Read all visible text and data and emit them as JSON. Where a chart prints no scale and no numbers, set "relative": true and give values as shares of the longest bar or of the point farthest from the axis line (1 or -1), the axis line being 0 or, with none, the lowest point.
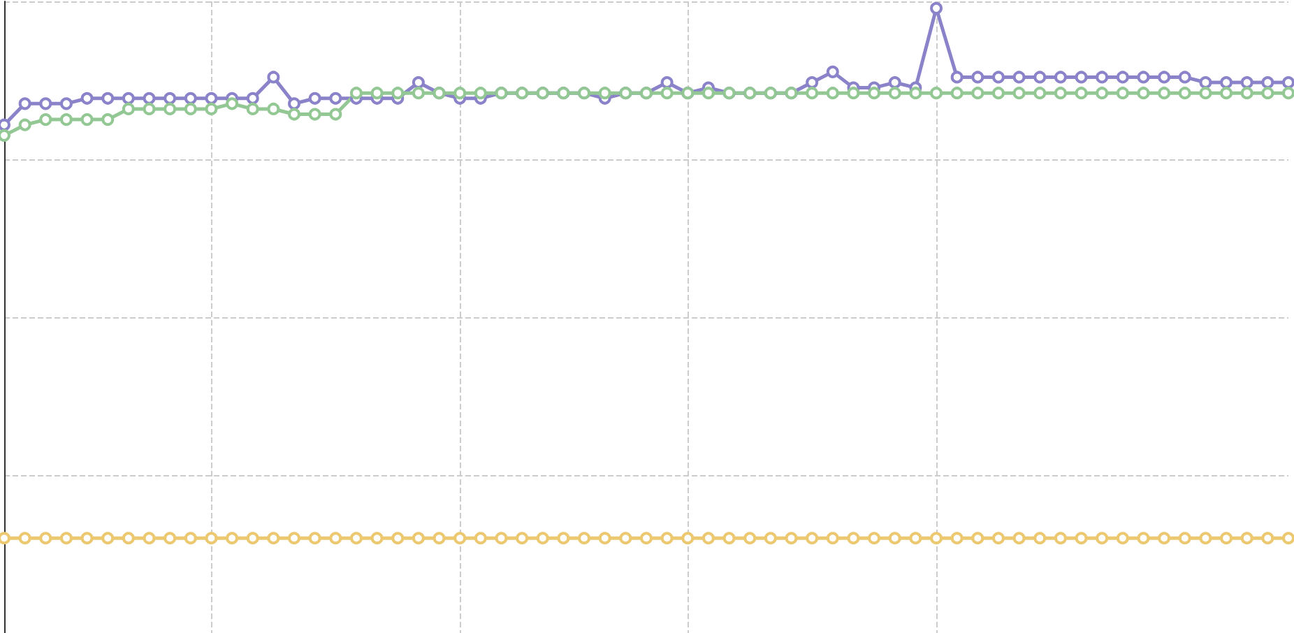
{
  "chart_data": {
    "type": "line",
    "relative": true,
    "grid": true,
    "marker": "circle",
    "line_style": "solid",
    "categories": [
      null,
      null,
      null,
      null,
      null,
      null,
      null,
      null,
      null,
      null,
      null,
      null,
      null,
      null,
      null,
      null,
      null,
      null,
      null,
      null,
      null,
      null,
      null,
      null,
      null,
      null,
      null,
      null,
      null,
      null,
      null,
      null,
      null,
      null,
      null,
      null,
      null,
      null,
      null,
      null,
      null,
      null,
      null,
      null,
      null,
      null,
      null,
      null,
      null,
      null,
      null,
      null,
      null,
      null,
      null,
      null,
      null,
      null,
      null,
      null,
      null,
      null,
      null
    ],
    "series": [
      {
        "color": "#8b83c9",
        "values": [
          0.78,
          0.82,
          0.82,
          0.82,
          0.83,
          0.83,
          0.83,
          0.83,
          0.83,
          0.83,
          0.83,
          0.83,
          0.83,
          0.87,
          0.82,
          0.83,
          0.83,
          0.83,
          0.83,
          0.83,
          0.86,
          0.84,
          0.83,
          0.83,
          0.84,
          0.84,
          0.84,
          0.84,
          0.84,
          0.83,
          0.84,
          0.84,
          0.86,
          0.84,
          0.85,
          0.84,
          0.84,
          0.84,
          0.84,
          0.86,
          0.88,
          0.85,
          0.85,
          0.86,
          0.85,
          1,
          0.87,
          0.87,
          0.87,
          0.87,
          0.87,
          0.87,
          0.87,
          0.87,
          0.87,
          0.87,
          0.87,
          0.87,
          0.86,
          0.86,
          0.86,
          0.86,
          0.86
        ]
      },
      {
        "color": "#93c894",
        "values": [
          0.76,
          0.78,
          0.79,
          0.79,
          0.79,
          0.79,
          0.81,
          0.81,
          0.81,
          0.81,
          0.81,
          0.82,
          0.81,
          0.81,
          0.8,
          0.8,
          0.8,
          0.84,
          0.84,
          0.84,
          0.84,
          0.84,
          0.84,
          0.84,
          0.84,
          0.84,
          0.84,
          0.84,
          0.84,
          0.84,
          0.84,
          0.84,
          0.84,
          0.84,
          0.84,
          0.84,
          0.84,
          0.84,
          0.84,
          0.84,
          0.84,
          0.84,
          0.84,
          0.84,
          0.84,
          0.84,
          0.84,
          0.84,
          0.84,
          0.84,
          0.84,
          0.84,
          0.84,
          0.84,
          0.84,
          0.84,
          0.84,
          0.84,
          0.84,
          0.84,
          0.84,
          0.84,
          0.84
        ]
      },
      {
        "color": "#ecc870",
        "values": [
          0,
          0,
          0,
          0,
          0,
          0,
          0,
          0,
          0,
          0,
          0,
          0,
          0,
          0,
          0,
          0,
          0,
          0,
          0,
          0,
          0,
          0,
          0,
          0,
          0,
          0,
          0,
          0,
          0,
          0,
          0,
          0,
          0,
          0,
          0,
          0,
          0,
          0,
          0,
          0,
          0,
          0,
          0,
          0,
          0,
          0,
          0,
          0,
          0,
          0,
          0,
          0,
          0,
          0,
          0,
          0,
          0,
          0,
          0,
          0,
          0,
          0,
          0
        ]
      }
    ]
  }
}
